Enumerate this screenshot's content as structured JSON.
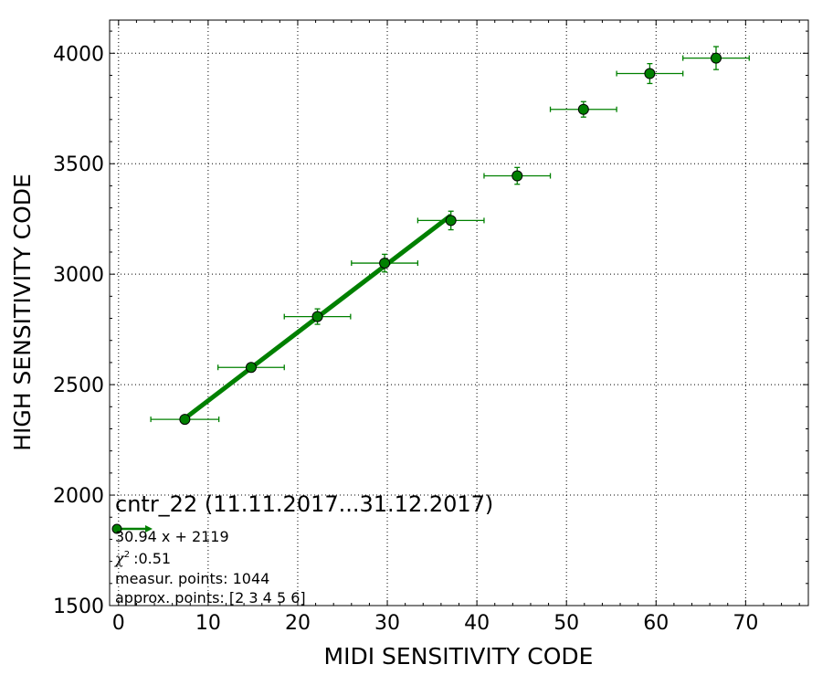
{
  "chart_data": {
    "type": "scatter",
    "xlabel": "MIDI SENSITIVITY CODE",
    "ylabel": "HIGH SENSITIVITY CODE",
    "xlim": [
      -1,
      77
    ],
    "ylim": [
      1500,
      4150
    ],
    "xticks": [
      0,
      10,
      20,
      30,
      40,
      50,
      60,
      70
    ],
    "yticks": [
      1500,
      2000,
      2500,
      3000,
      3500,
      4000
    ],
    "grid": true,
    "colors": {
      "series": "#008000",
      "marker_fill": "#008000",
      "marker_edge": "#000000"
    },
    "points": [
      {
        "x": 7.4,
        "y": 2343,
        "xerr": 3.8,
        "yerr": 12
      },
      {
        "x": 14.8,
        "y": 2578,
        "xerr": 3.7,
        "yerr": 15
      },
      {
        "x": 22.2,
        "y": 2808,
        "xerr": 3.7,
        "yerr": 35
      },
      {
        "x": 29.7,
        "y": 3050,
        "xerr": 3.7,
        "yerr": 40
      },
      {
        "x": 37.1,
        "y": 3243,
        "xerr": 3.7,
        "yerr": 42
      },
      {
        "x": 44.5,
        "y": 3445,
        "xerr": 3.7,
        "yerr": 38
      },
      {
        "x": 51.9,
        "y": 3746,
        "xerr": 3.7,
        "yerr": 35
      },
      {
        "x": 59.3,
        "y": 3908,
        "xerr": 3.7,
        "yerr": 45
      },
      {
        "x": 66.7,
        "y": 3978,
        "xerr": 3.7,
        "yerr": 52
      }
    ],
    "fit": {
      "x": [
        7.4,
        37.1
      ],
      "y": [
        2347,
        3266
      ]
    },
    "legend": {
      "title": "cntr_22 (11.11.2017...31.12.2017)",
      "fit_label": "30.94 x + 2119",
      "chi2_symbol": "χ",
      "chi2_value": ":0.51",
      "measur_points": "measur. points: 1044",
      "approx_points": "approx. points: [2 3 4 5 6]"
    }
  }
}
